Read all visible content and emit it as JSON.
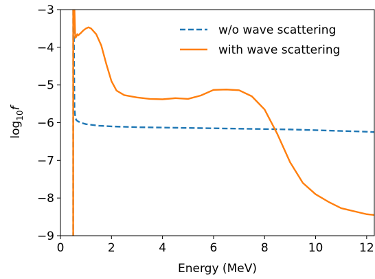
{
  "chart_data": {
    "type": "line",
    "xlabel": "Energy (MeV)",
    "ylabel_base": "log",
    "ylabel_sub": "10",
    "ylabel_var": "f",
    "xlim": [
      0,
      12.3
    ],
    "ylim": [
      -9,
      -3
    ],
    "x_ticks": [
      0,
      2,
      4,
      6,
      8,
      10,
      12
    ],
    "y_ticks": [
      -9,
      -8,
      -7,
      -6,
      -5,
      -4,
      -3
    ],
    "x_tick_labels": [
      "0",
      "2",
      "4",
      "6",
      "8",
      "10",
      "12"
    ],
    "y_tick_labels": [
      "−9",
      "−8",
      "−7",
      "−6",
      "−5",
      "−4",
      "−3"
    ],
    "legend_position": "top-right",
    "series": [
      {
        "name": "w/o wave scattering",
        "color": "#1f77b4",
        "style": "dashed",
        "x": [
          0.5,
          0.5,
          0.52,
          0.55,
          0.58,
          0.62,
          0.7,
          0.8,
          1.0,
          1.5,
          2,
          3,
          4,
          5,
          6,
          7,
          8,
          9,
          10,
          11,
          12,
          12.3
        ],
        "y": [
          -9.5,
          -3.0,
          -3.0,
          -5.6,
          -5.85,
          -5.93,
          -5.97,
          -6.0,
          -6.04,
          -6.08,
          -6.1,
          -6.12,
          -6.13,
          -6.14,
          -6.15,
          -6.16,
          -6.17,
          -6.18,
          -6.2,
          -6.22,
          -6.24,
          -6.25
        ]
      },
      {
        "name": "with wave scattering",
        "color": "#ff7f0e",
        "style": "solid",
        "x": [
          0.5,
          0.5,
          0.55,
          0.58,
          0.62,
          0.66,
          0.7,
          0.8,
          0.9,
          1.0,
          1.1,
          1.2,
          1.4,
          1.6,
          1.8,
          2.0,
          2.2,
          2.5,
          3,
          3.5,
          4,
          4.5,
          5,
          5.5,
          6,
          6.5,
          7,
          7.5,
          8,
          8.5,
          9,
          9.5,
          10,
          10.5,
          11,
          11.5,
          12,
          12.3
        ],
        "y": [
          -9.5,
          -3.0,
          -3.0,
          -3.75,
          -3.72,
          -3.65,
          -3.68,
          -3.62,
          -3.55,
          -3.5,
          -3.47,
          -3.5,
          -3.65,
          -3.95,
          -4.45,
          -4.9,
          -5.15,
          -5.27,
          -5.33,
          -5.37,
          -5.38,
          -5.35,
          -5.37,
          -5.28,
          -5.13,
          -5.12,
          -5.14,
          -5.3,
          -5.65,
          -6.3,
          -7.05,
          -7.6,
          -7.9,
          -8.1,
          -8.27,
          -8.35,
          -8.43,
          -8.45
        ]
      }
    ]
  }
}
